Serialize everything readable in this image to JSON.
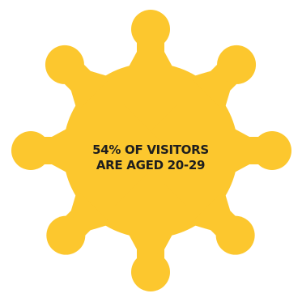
{
  "infographic": {
    "fill_color": "#fcc72e",
    "text_color": "#1e1e1e",
    "stat_line_1": "54% OF VISITORS",
    "stat_line_2": "ARE AGED 20-29"
  }
}
